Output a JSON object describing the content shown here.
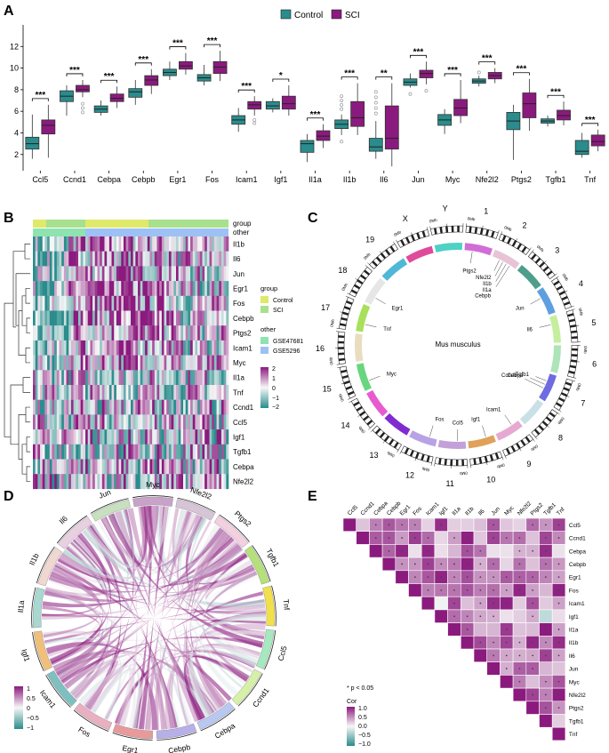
{
  "panels": {
    "a": "A",
    "b": "B",
    "c": "C",
    "d": "D",
    "e": "E"
  },
  "colors": {
    "control": "#2a8c8c",
    "sci": "#8b1a7e",
    "control_light": "#dfe96a",
    "sci_light": "#a8e08d",
    "gse47681": "#8fe3b0",
    "gse5296": "#9ec1f5",
    "low": "#2a8c8c",
    "mid": "#f7f7f7",
    "high": "#8b1a7e"
  },
  "chart_data": [
    {
      "type": "box",
      "panel": "A",
      "legend": [
        "Control",
        "SCI"
      ],
      "ylim": [
        0.5,
        14
      ],
      "yticks": [
        2,
        4,
        6,
        8,
        10,
        12
      ],
      "series": [
        {
          "gene": "Ccl5",
          "sig": "***",
          "control": [
            1.6,
            2.5,
            3.0,
            3.6,
            5.7
          ],
          "sci": [
            1.7,
            3.9,
            4.7,
            5.2,
            6.6
          ],
          "outliers_control": [],
          "outliers_sci": []
        },
        {
          "gene": "Ccnd1",
          "sig": "***",
          "control": [
            5.6,
            6.9,
            7.4,
            7.9,
            8.4
          ],
          "sci": [
            7.3,
            7.8,
            8.0,
            8.4,
            8.9
          ],
          "outliers_control": [],
          "outliers_sci": [
            6.7,
            6.3,
            5.9
          ]
        },
        {
          "gene": "Cebpa",
          "sig": "***",
          "control": [
            5.6,
            5.9,
            6.2,
            6.5,
            7.0
          ],
          "sci": [
            6.3,
            6.9,
            7.2,
            7.6,
            8.3
          ],
          "outliers_control": [],
          "outliers_sci": []
        },
        {
          "gene": "Cebpb",
          "sig": "***",
          "control": [
            6.6,
            7.3,
            7.8,
            8.1,
            8.9
          ],
          "sci": [
            7.6,
            8.4,
            8.9,
            9.3,
            9.9
          ],
          "outliers_control": [],
          "outliers_sci": []
        },
        {
          "gene": "Egr1",
          "sig": "***",
          "control": [
            8.9,
            9.3,
            9.6,
            9.9,
            10.6
          ],
          "sci": [
            9.4,
            9.9,
            10.2,
            10.6,
            11.4
          ],
          "outliers_control": [],
          "outliers_sci": []
        },
        {
          "gene": "Fos",
          "sig": "***",
          "control": [
            8.4,
            8.8,
            9.1,
            9.4,
            10.3
          ],
          "sci": [
            8.8,
            9.5,
            10.1,
            10.6,
            11.6
          ],
          "outliers_control": [],
          "outliers_sci": []
        },
        {
          "gene": "Icam1",
          "sig": "***",
          "control": [
            4.1,
            4.8,
            5.2,
            5.6,
            6.3
          ],
          "sci": [
            5.6,
            6.2,
            6.6,
            6.9,
            7.4
          ],
          "outliers_control": [],
          "outliers_sci": [
            5.2,
            4.9
          ]
        },
        {
          "gene": "Igf1",
          "sig": "*",
          "control": [
            5.9,
            6.2,
            6.5,
            6.9,
            7.2
          ],
          "sci": [
            5.6,
            6.2,
            6.7,
            7.4,
            8.4
          ],
          "outliers_control": [],
          "outliers_sci": []
        },
        {
          "gene": "Il1a",
          "sig": "***",
          "control": [
            1.3,
            2.2,
            3.0,
            3.3,
            3.9
          ],
          "sci": [
            2.6,
            3.3,
            3.7,
            4.2,
            4.8
          ],
          "outliers_control": [],
          "outliers_sci": []
        },
        {
          "gene": "Il1b",
          "sig": "***",
          "control": [
            3.8,
            4.4,
            4.8,
            5.2,
            5.7
          ],
          "sci": [
            3.8,
            4.6,
            5.4,
            6.9,
            8.6
          ],
          "outliers_control": [
            7.4,
            7.0,
            6.6,
            6.2,
            3.2
          ],
          "outliers_sci": []
        },
        {
          "gene": "Il6",
          "sig": "**",
          "control": [
            1.6,
            2.3,
            2.7,
            3.5,
            5.1
          ],
          "sci": [
            0.9,
            2.5,
            3.5,
            6.5,
            8.6
          ],
          "outliers_control": [
            7.8,
            7.3,
            6.8,
            6.3,
            5.8
          ],
          "outliers_sci": []
        },
        {
          "gene": "Jun",
          "sig": "***",
          "control": [
            8.2,
            8.4,
            8.7,
            9.0,
            9.5
          ],
          "sci": [
            8.5,
            9.1,
            9.5,
            9.8,
            10.6
          ],
          "outliers_control": [
            7.6
          ],
          "outliers_sci": [
            7.9
          ]
        },
        {
          "gene": "Myc",
          "sig": "***",
          "control": [
            3.9,
            4.7,
            5.2,
            5.7,
            6.2
          ],
          "sci": [
            4.9,
            5.6,
            6.3,
            7.1,
            8.9
          ],
          "outliers_control": [],
          "outliers_sci": []
        },
        {
          "gene": "Nfe2l2",
          "sig": "***",
          "control": [
            8.3,
            8.6,
            8.8,
            9.0,
            9.3
          ],
          "sci": [
            8.6,
            9.0,
            9.3,
            9.6,
            10.0
          ],
          "outliers_control": [
            9.6
          ],
          "outliers_sci": []
        },
        {
          "gene": "Ptgs2",
          "sig": "***",
          "control": [
            1.5,
            4.3,
            5.1,
            5.9,
            6.6
          ],
          "sci": [
            4.2,
            5.4,
            6.7,
            7.7,
            9.0
          ],
          "outliers_control": [],
          "outliers_sci": []
        },
        {
          "gene": "Tgfb1",
          "sig": "***",
          "control": [
            4.6,
            4.9,
            5.1,
            5.3,
            5.6
          ],
          "sci": [
            4.7,
            5.2,
            5.6,
            6.1,
            6.9
          ],
          "outliers_control": [],
          "outliers_sci": []
        },
        {
          "gene": "Tnf",
          "sig": "***",
          "control": [
            1.7,
            2.0,
            2.3,
            3.3,
            4.0
          ],
          "sci": [
            2.3,
            2.8,
            3.2,
            3.8,
            4.3
          ],
          "outliers_control": [],
          "outliers_sci": []
        }
      ]
    },
    {
      "type": "heatmap",
      "panel": "B",
      "track_labels": [
        "group",
        "other"
      ],
      "rows": [
        "Il1b",
        "Il6",
        "Jun",
        "Egr1",
        "Fos",
        "Cebpb",
        "Ptgs2",
        "Icam1",
        "Myc",
        "Il1a",
        "Tnf",
        "Ccnd1",
        "Ccl5",
        "Igf1",
        "Tgfb1",
        "Cebpa",
        "Nfe2l2"
      ],
      "legend_group_title": "group",
      "legend_group": [
        "Control",
        "SCI"
      ],
      "legend_other_title": "other",
      "legend_other": [
        "GSE47681",
        "GSE5296"
      ],
      "scale_ticks": [
        "2",
        "1",
        "0",
        "−1",
        "−2"
      ]
    },
    {
      "type": "circos",
      "panel": "C",
      "center_label": "Mus musculus",
      "chromosomes": [
        "1",
        "2",
        "3",
        "4",
        "5",
        "6",
        "7",
        "8",
        "9",
        "10",
        "11",
        "12",
        "13",
        "14",
        "15",
        "16",
        "17",
        "18",
        "19",
        "X",
        "Y"
      ],
      "genes": [
        {
          "name": "Ptgs2",
          "chr": "1"
        },
        {
          "name": "Nfe2l2",
          "chr": "2"
        },
        {
          "name": "Il1b",
          "chr": "2"
        },
        {
          "name": "Il1a",
          "chr": "2"
        },
        {
          "name": "Cebpb",
          "chr": "2"
        },
        {
          "name": "Jun",
          "chr": "4"
        },
        {
          "name": "Il6",
          "chr": "5"
        },
        {
          "name": "Tgfb1",
          "chr": "7"
        },
        {
          "name": "Cebpa",
          "chr": "7"
        },
        {
          "name": "Ccnd1",
          "chr": "7"
        },
        {
          "name": "Icam1",
          "chr": "9"
        },
        {
          "name": "Igf1",
          "chr": "10"
        },
        {
          "name": "Ccl5",
          "chr": "11"
        },
        {
          "name": "Fos",
          "chr": "12"
        },
        {
          "name": "Myc",
          "chr": "15"
        },
        {
          "name": "Tnf",
          "chr": "17"
        },
        {
          "name": "Egr1",
          "chr": "18"
        }
      ],
      "axis_ticks": [
        "0Mb",
        "40Mb",
        "80Mb",
        "120Mb",
        "160Mb"
      ]
    },
    {
      "type": "chord",
      "panel": "D",
      "sectors": [
        "Myc",
        "Nfe2l2",
        "Ptgs2",
        "Tgfb1",
        "Tnf",
        "Ccl5",
        "Ccnd1",
        "Cebpa",
        "Cebpb",
        "Egr1",
        "Fos",
        "Icam1",
        "Igf1",
        "Il1a",
        "Il1b",
        "Il6",
        "Jun"
      ],
      "scale_ticks": [
        "1",
        "0.5",
        "0",
        "−0.5",
        "−1"
      ]
    },
    {
      "type": "correlation",
      "panel": "E",
      "genes": [
        "Ccl5",
        "Ccnd1",
        "Cebpa",
        "Cebpb",
        "Egr1",
        "Fos",
        "Icam1",
        "Igf1",
        "Il1a",
        "Il1b",
        "Il6",
        "Jun",
        "Myc",
        "Nfe2l2",
        "Ptgs2",
        "Tgfb1",
        "Tnf"
      ],
      "note": "* p < 0.05",
      "scale_title": "Cor",
      "scale_ticks": [
        "1.0",
        "0.5",
        "0.0",
        "−0.5",
        "−1.0"
      ]
    }
  ]
}
